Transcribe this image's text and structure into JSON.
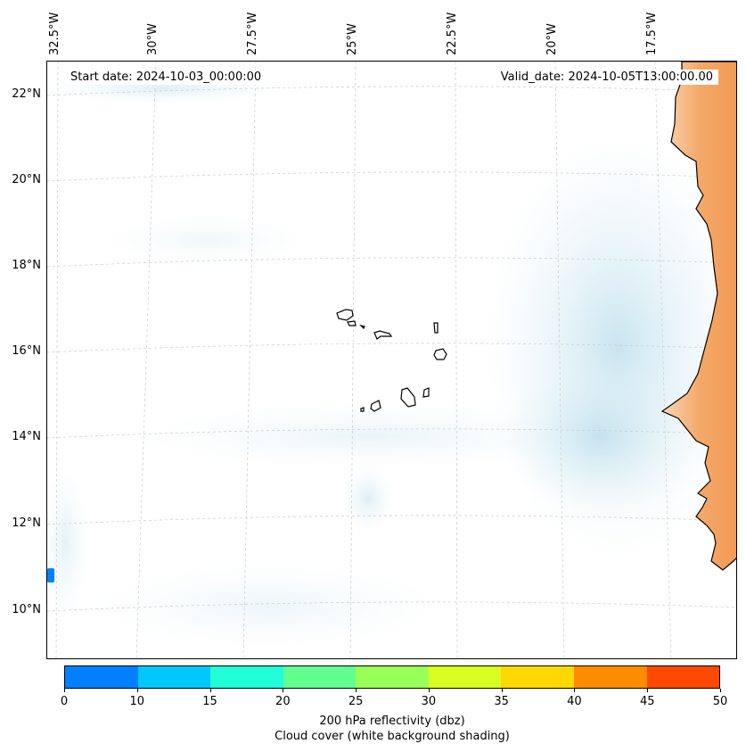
{
  "map": {
    "start_date": "Start date: 2024-10-03_00:00:00",
    "valid_date": "Valid_date: 2024-10-05T13:00:00.00",
    "longitude_labels": [
      "32.5°W",
      "30°W",
      "27.5°W",
      "25°W",
      "22.5°W",
      "20°W",
      "17.5°W"
    ],
    "latitude_labels": [
      "22°N",
      "20°N",
      "18°N",
      "16°N",
      "14°N",
      "12°N",
      "10°N"
    ],
    "land_color": "#f4a060",
    "cloud_color": "#cfe8f0"
  },
  "colorbar": {
    "label": "200 hPa reflectivity (dbz)",
    "sublabel": "Cloud cover (white background shading)",
    "ticks": [
      "0",
      "10",
      "15",
      "20",
      "25",
      "30",
      "35",
      "40",
      "45",
      "50"
    ],
    "colors": [
      "#0080ff",
      "#00c8ff",
      "#20ffd8",
      "#60ff90",
      "#98ff58",
      "#d8ff20",
      "#ffd800",
      "#ff8c00",
      "#ff4800"
    ]
  }
}
